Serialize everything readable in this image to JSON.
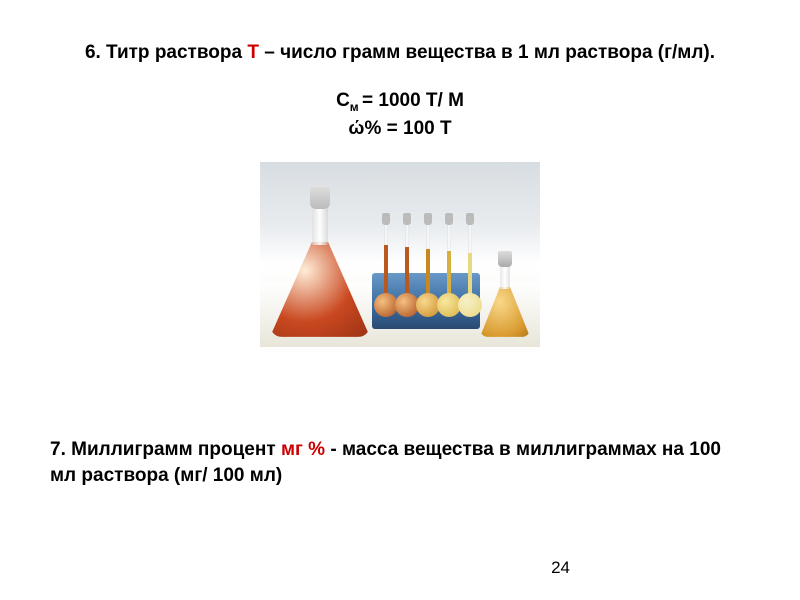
{
  "section6": {
    "prefix": "6. Титр раствора  ",
    "symbol": "Т",
    "suffix": " – число грамм  вещества в 1 мл раствора (г/мл)."
  },
  "formulas": {
    "line1_left": "С",
    "line1_sub": "м ",
    "line1_right": "= 1000 Т/ М",
    "line2": "ώ% = 100 Т"
  },
  "image": {
    "flask_colors": {
      "big": "#c94820",
      "small": "#d99b30"
    },
    "rack_color": "#3a6aa0",
    "vflask_colors": [
      "#a84a18",
      "#a84a18",
      "#c88820",
      "#d8b040",
      "#e8d880"
    ]
  },
  "section7": {
    "prefix": "7. Миллиграмм процент  ",
    "symbol": "мг %",
    "suffix": " - масса вещества в миллиграммах на 100 мл раствора (мг/ 100 мл)"
  },
  "page_number": "24",
  "colors": {
    "accent": "#cc0000",
    "text": "#000000",
    "background": "#ffffff"
  }
}
